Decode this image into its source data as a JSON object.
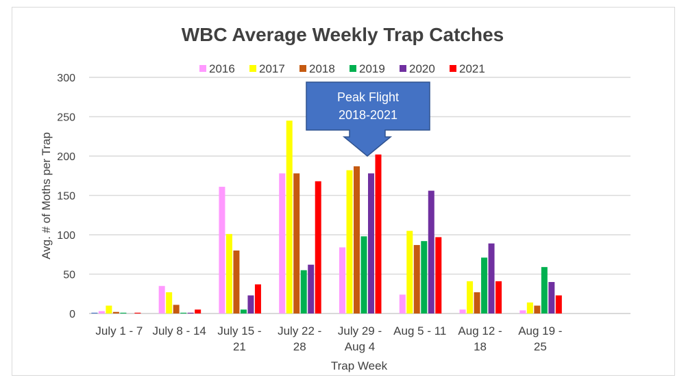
{
  "chart_data": {
    "type": "bar",
    "title": "WBC Average Weekly Trap Catches",
    "xlabel": "Trap Week",
    "ylabel": "Avg. # of Moths per Trap",
    "ylim": [
      0,
      300
    ],
    "yticks": [
      "0",
      "50",
      "100",
      "150",
      "200",
      "250",
      "300"
    ],
    "grid": true,
    "legend_position": "top",
    "categories": [
      [
        "July 1 - 7"
      ],
      [
        "July 8 - 14"
      ],
      [
        "July 15 -",
        "21"
      ],
      [
        "July 22 -",
        "28"
      ],
      [
        "July 29 -",
        "Aug 4"
      ],
      [
        "Aug 5 - 11"
      ],
      [
        "Aug 12 -",
        "18"
      ],
      [
        "Aug 19 -",
        "25"
      ],
      [
        ""
      ]
    ],
    "series": [
      {
        "name": "",
        "color": "#4472C4",
        "values": [
          1,
          0,
          0,
          0,
          0,
          0,
          0,
          0,
          0
        ]
      },
      {
        "name": "2016",
        "color": "#FF99FF",
        "values": [
          3,
          35,
          161,
          178,
          84,
          24,
          5,
          4,
          0
        ]
      },
      {
        "name": "2017",
        "color": "#FFFF00",
        "values": [
          10,
          27,
          101,
          245,
          182,
          105,
          41,
          14,
          0
        ]
      },
      {
        "name": "2018",
        "color": "#C55A11",
        "values": [
          2,
          11,
          80,
          178,
          187,
          87,
          27,
          10,
          0
        ]
      },
      {
        "name": "2019",
        "color": "#00B050",
        "values": [
          1,
          1,
          5,
          55,
          98,
          92,
          71,
          59,
          0
        ]
      },
      {
        "name": "2020",
        "color": "#7030A0",
        "values": [
          0,
          1,
          23,
          62,
          178,
          156,
          89,
          40,
          0
        ]
      },
      {
        "name": "2021",
        "color": "#FF0000",
        "values": [
          1,
          5,
          37,
          168,
          202,
          97,
          41,
          23,
          0
        ]
      }
    ],
    "annotation": {
      "lines": [
        "Peak Flight",
        "2018-2021"
      ],
      "color": "#4472C4",
      "points_to_category": 4
    }
  }
}
